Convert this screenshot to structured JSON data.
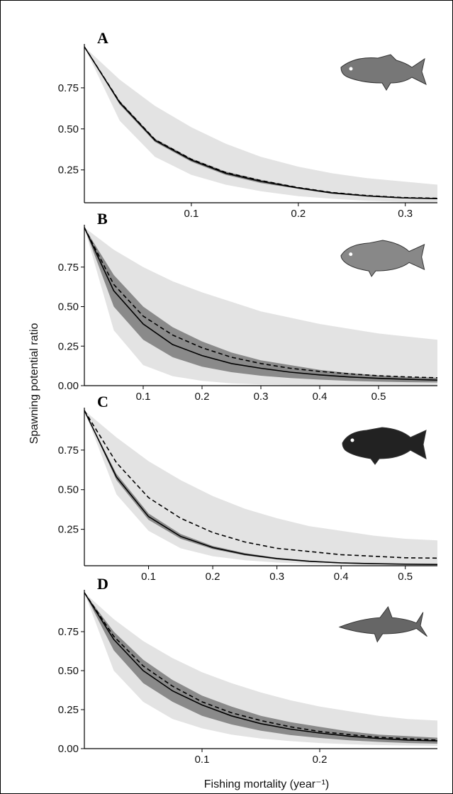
{
  "figure": {
    "ylabel": "Spawning potential ratio",
    "xlabel": "Fishing mortality (year⁻¹)"
  },
  "colors": {
    "outer_band": "#e3e3e3",
    "inner_band": "#8a8a8a",
    "line": "#000000"
  },
  "chart_data": [
    {
      "type": "line",
      "panel": "A",
      "icon": "snapper-fish-icon",
      "xlim": [
        0,
        0.33
      ],
      "ylim": [
        0.05,
        1.0
      ],
      "xticks": [
        0.1,
        0.2,
        0.3
      ],
      "xtick_labels": [
        "0.1",
        "0.2",
        "0.3"
      ],
      "yticks": [
        0.25,
        0.5,
        0.75
      ],
      "ytick_labels": [
        "0.25",
        "0.50",
        "0.75"
      ],
      "x": [
        0,
        0.033,
        0.066,
        0.1,
        0.132,
        0.165,
        0.2,
        0.231,
        0.264,
        0.297,
        0.33
      ],
      "series": [
        {
          "role": "outer_upper",
          "values": [
            1.0,
            0.8,
            0.64,
            0.51,
            0.41,
            0.33,
            0.27,
            0.23,
            0.2,
            0.18,
            0.16
          ]
        },
        {
          "role": "inner_upper",
          "values": [
            1.0,
            0.67,
            0.44,
            0.32,
            0.24,
            0.19,
            0.145,
            0.115,
            0.095,
            0.083,
            0.078
          ]
        },
        {
          "role": "median_solid",
          "values": [
            1.0,
            0.66,
            0.43,
            0.31,
            0.23,
            0.18,
            0.14,
            0.11,
            0.092,
            0.08,
            0.075
          ]
        },
        {
          "role": "point_dashed",
          "values": [
            1.0,
            0.665,
            0.435,
            0.315,
            0.235,
            0.185,
            0.143,
            0.113,
            0.094,
            0.082,
            0.077
          ]
        },
        {
          "role": "inner_lower",
          "values": [
            1.0,
            0.65,
            0.42,
            0.3,
            0.22,
            0.17,
            0.135,
            0.105,
            0.088,
            0.077,
            0.072
          ]
        },
        {
          "role": "outer_lower",
          "values": [
            1.0,
            0.55,
            0.33,
            0.22,
            0.16,
            0.12,
            0.09,
            0.075,
            0.062,
            0.055,
            0.05
          ]
        }
      ]
    },
    {
      "type": "line",
      "panel": "B",
      "icon": "hogfish-icon",
      "xlim": [
        0,
        0.6
      ],
      "ylim": [
        0,
        1.0
      ],
      "xticks": [
        0.1,
        0.2,
        0.3,
        0.4,
        0.5
      ],
      "xtick_labels": [
        "0.1",
        "0.2",
        "0.3",
        "0.4",
        "0.5"
      ],
      "yticks": [
        0,
        0.25,
        0.5,
        0.75
      ],
      "ytick_labels": [
        "0.00",
        "0.25",
        "0.50",
        "0.75"
      ],
      "x": [
        0,
        0.05,
        0.1,
        0.15,
        0.2,
        0.25,
        0.3,
        0.35,
        0.4,
        0.45,
        0.5,
        0.55,
        0.6
      ],
      "series": [
        {
          "role": "outer_upper",
          "values": [
            1.0,
            0.86,
            0.75,
            0.66,
            0.59,
            0.53,
            0.47,
            0.43,
            0.39,
            0.36,
            0.33,
            0.31,
            0.29
          ]
        },
        {
          "role": "inner_upper",
          "values": [
            1.0,
            0.7,
            0.5,
            0.37,
            0.28,
            0.21,
            0.16,
            0.13,
            0.1,
            0.08,
            0.065,
            0.055,
            0.05
          ]
        },
        {
          "role": "point_dashed",
          "values": [
            1.0,
            0.64,
            0.44,
            0.32,
            0.24,
            0.18,
            0.14,
            0.11,
            0.09,
            0.075,
            0.063,
            0.055,
            0.05
          ]
        },
        {
          "role": "median_solid",
          "values": [
            1.0,
            0.6,
            0.39,
            0.26,
            0.19,
            0.14,
            0.11,
            0.085,
            0.068,
            0.055,
            0.046,
            0.04,
            0.035
          ]
        },
        {
          "role": "inner_lower",
          "values": [
            1.0,
            0.5,
            0.29,
            0.18,
            0.12,
            0.085,
            0.063,
            0.048,
            0.038,
            0.03,
            0.025,
            0.022,
            0.02
          ]
        },
        {
          "role": "outer_lower",
          "values": [
            1.0,
            0.35,
            0.13,
            0.06,
            0.03,
            0.015,
            0.008,
            0.005,
            0.003,
            0.002,
            0.002,
            0.001,
            0.001
          ]
        }
      ]
    },
    {
      "type": "line",
      "panel": "C",
      "icon": "grouper-icon",
      "xlim": [
        0,
        0.55
      ],
      "ylim": [
        0.02,
        1.0
      ],
      "xticks": [
        0.1,
        0.2,
        0.3,
        0.4,
        0.5
      ],
      "xtick_labels": [
        "0.1",
        "0.2",
        "0.3",
        "0.4",
        "0.5"
      ],
      "yticks": [
        0.25,
        0.5,
        0.75
      ],
      "ytick_labels": [
        "0.25",
        "0.50",
        "0.75"
      ],
      "x": [
        0,
        0.05,
        0.1,
        0.15,
        0.2,
        0.25,
        0.3,
        0.35,
        0.4,
        0.45,
        0.5,
        0.55
      ],
      "series": [
        {
          "role": "outer_upper",
          "values": [
            1.0,
            0.83,
            0.68,
            0.56,
            0.46,
            0.38,
            0.32,
            0.27,
            0.24,
            0.21,
            0.19,
            0.18
          ]
        },
        {
          "role": "point_dashed",
          "values": [
            1.0,
            0.67,
            0.45,
            0.32,
            0.23,
            0.17,
            0.13,
            0.11,
            0.09,
            0.08,
            0.07,
            0.068
          ]
        },
        {
          "role": "inner_upper",
          "values": [
            1.0,
            0.6,
            0.35,
            0.22,
            0.145,
            0.1,
            0.07,
            0.052,
            0.042,
            0.036,
            0.032,
            0.03
          ]
        },
        {
          "role": "median_solid",
          "values": [
            1.0,
            0.58,
            0.33,
            0.205,
            0.135,
            0.092,
            0.065,
            0.048,
            0.038,
            0.033,
            0.03,
            0.028
          ]
        },
        {
          "role": "inner_lower",
          "values": [
            1.0,
            0.56,
            0.31,
            0.19,
            0.125,
            0.085,
            0.06,
            0.044,
            0.035,
            0.03,
            0.027,
            0.025
          ]
        },
        {
          "role": "outer_lower",
          "values": [
            1.0,
            0.47,
            0.24,
            0.13,
            0.08,
            0.055,
            0.04,
            0.032,
            0.027,
            0.024,
            0.022,
            0.02
          ]
        }
      ]
    },
    {
      "type": "line",
      "panel": "D",
      "icon": "shark-icon",
      "xlim": [
        0,
        0.3
      ],
      "ylim": [
        0,
        1.0
      ],
      "xticks": [
        0.1,
        0.2
      ],
      "xtick_labels": [
        "0.1",
        "0.2"
      ],
      "yticks": [
        0,
        0.25,
        0.5,
        0.75
      ],
      "ytick_labels": [
        "0.00",
        "0.25",
        "0.50",
        "0.75"
      ],
      "x": [
        0,
        0.025,
        0.05,
        0.075,
        0.1,
        0.125,
        0.15,
        0.175,
        0.2,
        0.225,
        0.25,
        0.275,
        0.3
      ],
      "series": [
        {
          "role": "outer_upper",
          "values": [
            1.0,
            0.83,
            0.69,
            0.58,
            0.49,
            0.42,
            0.36,
            0.31,
            0.27,
            0.24,
            0.21,
            0.19,
            0.18
          ]
        },
        {
          "role": "inner_upper",
          "values": [
            1.0,
            0.75,
            0.57,
            0.44,
            0.34,
            0.27,
            0.21,
            0.17,
            0.14,
            0.11,
            0.09,
            0.08,
            0.07
          ]
        },
        {
          "role": "point_dashed",
          "values": [
            1.0,
            0.72,
            0.53,
            0.4,
            0.3,
            0.23,
            0.18,
            0.14,
            0.11,
            0.09,
            0.073,
            0.063,
            0.055
          ]
        },
        {
          "role": "median_solid",
          "values": [
            1.0,
            0.7,
            0.5,
            0.37,
            0.28,
            0.21,
            0.16,
            0.125,
            0.1,
            0.08,
            0.065,
            0.055,
            0.05
          ]
        },
        {
          "role": "inner_lower",
          "values": [
            1.0,
            0.63,
            0.42,
            0.3,
            0.21,
            0.155,
            0.115,
            0.087,
            0.068,
            0.053,
            0.043,
            0.036,
            0.032
          ]
        },
        {
          "role": "outer_lower",
          "values": [
            1.0,
            0.5,
            0.3,
            0.19,
            0.13,
            0.09,
            0.065,
            0.048,
            0.036,
            0.028,
            0.023,
            0.02,
            0.018
          ]
        }
      ]
    }
  ]
}
